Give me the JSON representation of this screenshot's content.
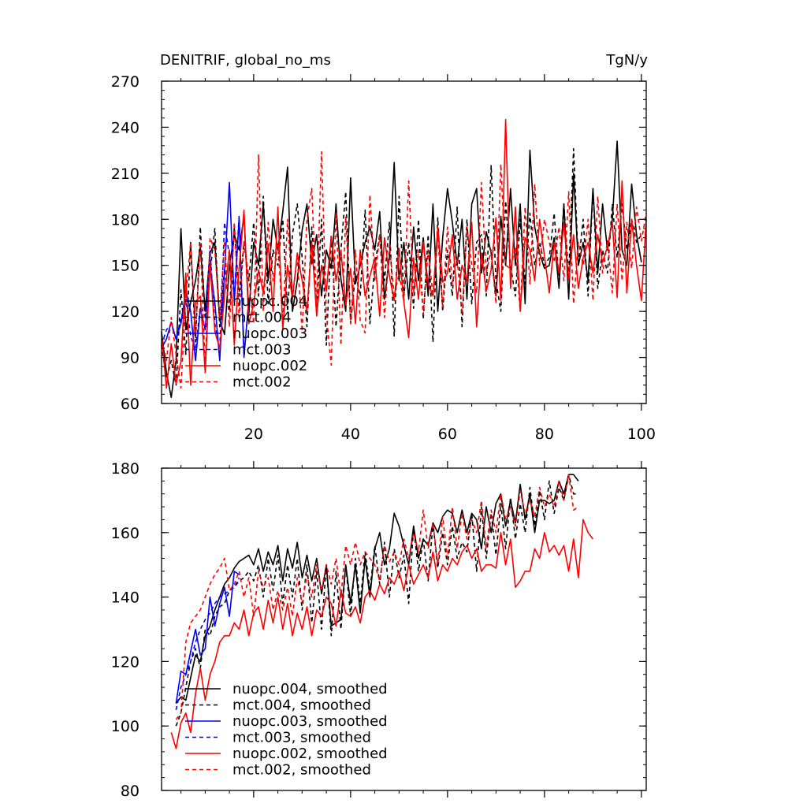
{
  "chart_data": [
    {
      "type": "line",
      "title": "DENITRIF, global_no_ms",
      "units": "TgN/y",
      "xlim": [
        1,
        101
      ],
      "ylim": [
        60,
        270
      ],
      "x_ticks": [
        20,
        40,
        60,
        80,
        100
      ],
      "y_ticks": [
        60,
        90,
        120,
        150,
        180,
        210,
        240,
        270
      ],
      "legend_position": "left-middle",
      "series": [
        {
          "name": "nuopc.004",
          "color": "#000000",
          "dash": false,
          "x_start": 1,
          "values": [
            107,
            80,
            64,
            88,
            174,
            108,
            126,
            140,
            162,
            120,
            158,
            165,
            114,
            105,
            150,
            170,
            160,
            182,
            118,
            165,
            150,
            190,
            140,
            180,
            160,
            185,
            214,
            120,
            140,
            173,
            190,
            151,
            170,
            130,
            160,
            148,
            190,
            141,
            120,
            207,
            138,
            150,
            165,
            175,
            160,
            185,
            128,
            155,
            217,
            140,
            165,
            128,
            175,
            140,
            168,
            130,
            190,
            120,
            168,
            200,
            178,
            150,
            180,
            128,
            190,
            200,
            145,
            172,
            158,
            130,
            182,
            150,
            200,
            150,
            190,
            125,
            225,
            175,
            158,
            148,
            150,
            168,
            135,
            190,
            128,
            210,
            150,
            165,
            140,
            200,
            145,
            190,
            160,
            180,
            231,
            160,
            150,
            203,
            170,
            152
          ]
        },
        {
          "name": "mct.004",
          "color": "#000000",
          "dash": true,
          "x_start": 1,
          "values": [
            98,
            76,
            88,
            72,
            134,
            92,
            165,
            100,
            175,
            115,
            145,
            174,
            110,
            148,
            120,
            175,
            130,
            165,
            140,
            178,
            130,
            195,
            125,
            160,
            150,
            180,
            120,
            170,
            190,
            155,
            110,
            175,
            120,
            180,
            98,
            170,
            110,
            160,
            198,
            112,
            145,
            130,
            186,
            112,
            150,
            170,
            140,
            178,
            104,
            195,
            130,
            165,
            122,
            180,
            115,
            170,
            100,
            181,
            120,
            160,
            130,
            188,
            110,
            180,
            125,
            165,
            170,
            130,
            215,
            140,
            120,
            192,
            150,
            130,
            180,
            138,
            184,
            150,
            165,
            150,
            155,
            184,
            140,
            190,
            143,
            226,
            150,
            180,
            130,
            200,
            135,
            160,
            145,
            190,
            155,
            190,
            160,
            180,
            165,
            170
          ]
        },
        {
          "name": "nuopc.003",
          "color": "#0000ff",
          "dash": false,
          "x_start": 1,
          "values": [
            96,
            102,
            113,
            102,
            112,
            134,
            120,
            88,
            122,
            108,
            150,
            126,
            88,
            146,
            204,
            126,
            181,
            90,
            128
          ]
        },
        {
          "name": "mct.003",
          "color": "#0000ff",
          "dash": true,
          "x_start": 1,
          "values": [
            98,
            108,
            112,
            102,
            115,
            128,
            104,
            95,
            123,
            117,
            160,
            112,
            95,
            178,
            156,
            130,
            182,
            92,
            125
          ]
        },
        {
          "name": "nuopc.002",
          "color": "#ff0000",
          "dash": false,
          "x_start": 1,
          "values": [
            105,
            70,
            99,
            73,
            87,
            145,
            72,
            126,
            130,
            80,
            151,
            107,
            96,
            130,
            160,
            98,
            148,
            186,
            112,
            125,
            147,
            132,
            164,
            120,
            188,
            108,
            150,
            128,
            158,
            140,
            120,
            165,
            117,
            150,
            133,
            169,
            140,
            160,
            124,
            148,
            112,
            160,
            130,
            143,
            155,
            117,
            168,
            143,
            127,
            161,
            126,
            103,
            155,
            128,
            165,
            138,
            130,
            175,
            139,
            145,
            170,
            128,
            150,
            140,
            178,
            110,
            158,
            133,
            147,
            181,
            127,
            245,
            135,
            188,
            120,
            168,
            160,
            140,
            180,
            156,
            132,
            165,
            145,
            178,
            140,
            170,
            135,
            155,
            165,
            145,
            170,
            152,
            162,
            178,
            129,
            205,
            132,
            180,
            150,
            127,
            180
          ]
        },
        {
          "name": "mct.002",
          "color": "#ff0000",
          "dash": true,
          "x_start": 1,
          "values": [
            102,
            88,
            116,
            92,
            70,
            130,
            165,
            105,
            165,
            84,
            168,
            160,
            116,
            166,
            110,
            178,
            116,
            166,
            142,
            112,
            222,
            120,
            178,
            140,
            165,
            112,
            180,
            130,
            155,
            107,
            180,
            200,
            124,
            224,
            118,
            85,
            185,
            98,
            182,
            112,
            160,
            114,
            106,
            196,
            140,
            170,
            116,
            163,
            130,
            145,
            126,
            205,
            132,
            160,
            118,
            160,
            130,
            170,
            122,
            175,
            138,
            154,
            118,
            175,
            150,
            132,
            204,
            145,
            160,
            125,
            216,
            150,
            148,
            162,
            120,
            188,
            138,
            203,
            150,
            180,
            165,
            152,
            175,
            140,
            198,
            125,
            165,
            150,
            180,
            127,
            195,
            145,
            166,
            132,
            190,
            140,
            178,
            148,
            188,
            166,
            184
          ]
        }
      ]
    },
    {
      "type": "line",
      "title": "",
      "xlim": [
        1,
        101
      ],
      "ylim": [
        80,
        180
      ],
      "y_ticks": [
        80,
        100,
        120,
        140,
        160,
        180
      ],
      "legend_position": "bottom-left",
      "series": [
        {
          "name": "nuopc.004, smoothed",
          "color": "#000000",
          "dash": false,
          "x_start": 4,
          "values": [
            107,
            109,
            108,
            115,
            122,
            120,
            128,
            131,
            136,
            140,
            144,
            146,
            149,
            151,
            152,
            153,
            150,
            155,
            148,
            154,
            150,
            156,
            145,
            155,
            149,
            157,
            146,
            153,
            145,
            152,
            141,
            150,
            131,
            132,
            133,
            150,
            138,
            150,
            135,
            152,
            140,
            155,
            160,
            150,
            155,
            166,
            162,
            156,
            150,
            162,
            152,
            158,
            156,
            163,
            160,
            165,
            167,
            166,
            160,
            167,
            160,
            166,
            164,
            155,
            168,
            160,
            169,
            172,
            162,
            170,
            163,
            175,
            164,
            172,
            160,
            170,
            170,
            169,
            170,
            176,
            172,
            178,
            178,
            176
          ]
        },
        {
          "name": "mct.004, smoothed",
          "color": "#000000",
          "dash": true,
          "x_start": 4,
          "values": [
            100,
            104,
            112,
            120,
            124,
            118,
            130,
            128,
            134,
            137,
            138,
            142,
            143,
            145,
            146,
            148,
            145,
            150,
            140,
            152,
            142,
            153,
            138,
            150,
            140,
            152,
            136,
            150,
            132,
            148,
            130,
            150,
            128,
            148,
            130,
            150,
            134,
            152,
            138,
            154,
            142,
            156,
            144,
            157,
            140,
            155,
            146,
            153,
            138,
            162,
            148,
            158,
            145,
            163,
            149,
            160,
            150,
            162,
            152,
            157,
            154,
            166,
            148,
            168,
            152,
            166,
            153,
            169,
            155,
            171,
            158,
            169,
            160,
            174,
            162,
            173,
            164,
            176,
            166,
            174,
            170,
            178,
            172,
            172
          ]
        },
        {
          "name": "nuopc.003, smoothed",
          "color": "#0000ff",
          "dash": false,
          "x_start": 4,
          "values": [
            107,
            117,
            116,
            123,
            130,
            122,
            124,
            140,
            131,
            138,
            143,
            134,
            148,
            147
          ]
        },
        {
          "name": "mct.003, smoothed",
          "color": "#0000ff",
          "dash": true,
          "x_start": 4,
          "values": [
            105,
            112,
            116,
            120,
            126,
            130,
            133,
            135,
            138,
            140,
            141,
            142,
            143,
            146
          ]
        },
        {
          "name": "nuopc.002, smoothed",
          "color": "#ff0000",
          "dash": false,
          "x_start": 3,
          "values": [
            98,
            93,
            101,
            104,
            98,
            110,
            118,
            108,
            116,
            120,
            126,
            128,
            128,
            132,
            130,
            136,
            128,
            135,
            137,
            130,
            139,
            132,
            140,
            130,
            138,
            128,
            135,
            130,
            137,
            128,
            136,
            134,
            140,
            138,
            131,
            142,
            135,
            134,
            137,
            132,
            140,
            142,
            139,
            144,
            141,
            146,
            144,
            148,
            142,
            150,
            144,
            147,
            150,
            146,
            154,
            145,
            150,
            148,
            152,
            150,
            154,
            156,
            152,
            155,
            148,
            150,
            150,
            149,
            160,
            150,
            158,
            143,
            145,
            148,
            148,
            155,
            152,
            160,
            154,
            156,
            153,
            156,
            148,
            158,
            146,
            164,
            160,
            158
          ]
        },
        {
          "name": "mct.002, smoothed",
          "color": "#ff0000",
          "dash": true,
          "x_start": 4,
          "values": [
            102,
            104,
            126,
            132,
            134,
            136,
            140,
            144,
            147,
            149,
            152,
            142,
            144,
            148,
            140,
            146,
            134,
            148,
            143,
            146,
            136,
            142,
            136,
            143,
            134,
            146,
            138,
            147,
            140,
            150,
            142,
            150,
            144,
            152,
            140,
            156,
            150,
            157,
            150,
            154,
            152,
            150,
            145,
            156,
            151,
            154,
            150,
            158,
            152,
            160,
            154,
            167,
            155,
            163,
            150,
            165,
            152,
            168,
            155,
            166,
            158,
            164,
            160,
            170,
            155,
            167,
            160,
            172,
            164,
            168,
            162,
            173,
            166,
            170,
            165,
            174,
            168,
            172,
            168,
            176,
            170,
            178,
            167,
            168
          ]
        }
      ]
    }
  ]
}
